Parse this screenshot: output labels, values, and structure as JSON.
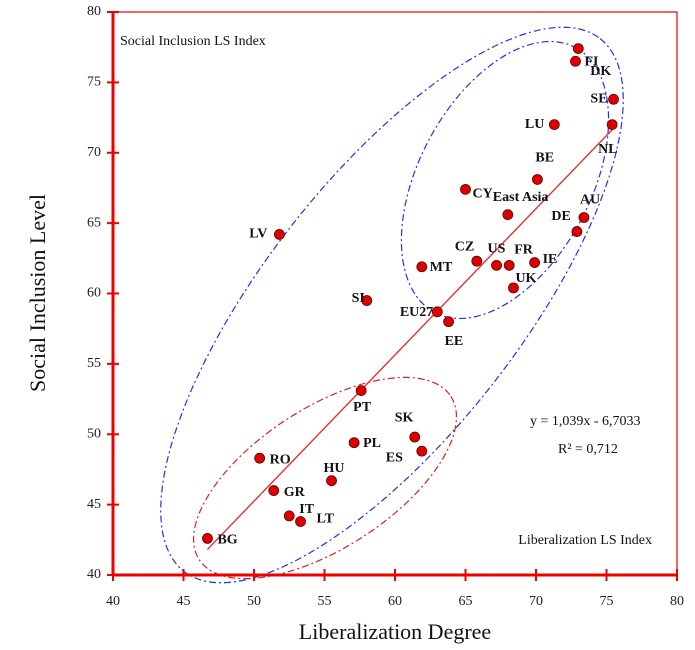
{
  "chart_data": {
    "type": "scatter",
    "xlabel": "Liberalization Degree",
    "ylabel": "Social Inclusion Level",
    "annotations": [
      "Social Inclusion LS Index",
      "Liberalization LS Index",
      "y = 1,039x - 6,7033",
      "R² = 0,712"
    ],
    "labels": [
      "BG",
      "RO",
      "GR",
      "IT",
      "LT",
      "HU",
      "PL",
      "PT",
      "SK",
      "ES",
      "EE",
      "EU27",
      "SI",
      "LV",
      "MT",
      "CZ",
      "US",
      "FR",
      "IE",
      "UK",
      "CY",
      "East Asia",
      "BE",
      "AU",
      "DE",
      "LU",
      "NL",
      "SE",
      "FI",
      "DK"
    ],
    "x": [
      46.7,
      50.4,
      51.4,
      52.5,
      53.3,
      55.5,
      57.1,
      57.6,
      61.4,
      61.9,
      63.8,
      63.0,
      58.0,
      51.8,
      61.9,
      65.8,
      67.2,
      68.1,
      69.9,
      68.4,
      65.0,
      68.0,
      70.1,
      73.4,
      72.9,
      71.3,
      75.4,
      75.5,
      72.8,
      73.0
    ],
    "values": [
      42.6,
      48.3,
      46.0,
      44.2,
      43.8,
      46.7,
      49.4,
      53.1,
      49.8,
      48.8,
      58.0,
      58.7,
      59.5,
      64.2,
      61.9,
      62.3,
      62.0,
      62.0,
      62.2,
      60.4,
      67.4,
      65.6,
      68.1,
      65.4,
      64.4,
      72.0,
      72.0,
      73.8,
      76.5,
      77.4
    ],
    "color": "#dd0000",
    "trend": {
      "slope": 1.039,
      "intercept": -6.7033,
      "x": [
        46.7,
        75.6
      ],
      "color": "#ee2222"
    },
    "xlim": [
      40,
      80
    ],
    "xticks": [
      40,
      45,
      50,
      55,
      60,
      65,
      70,
      75,
      80
    ],
    "ylim": [
      40,
      80
    ],
    "yticks": [
      40,
      45,
      50,
      55,
      60,
      65,
      70,
      75,
      80
    ]
  }
}
